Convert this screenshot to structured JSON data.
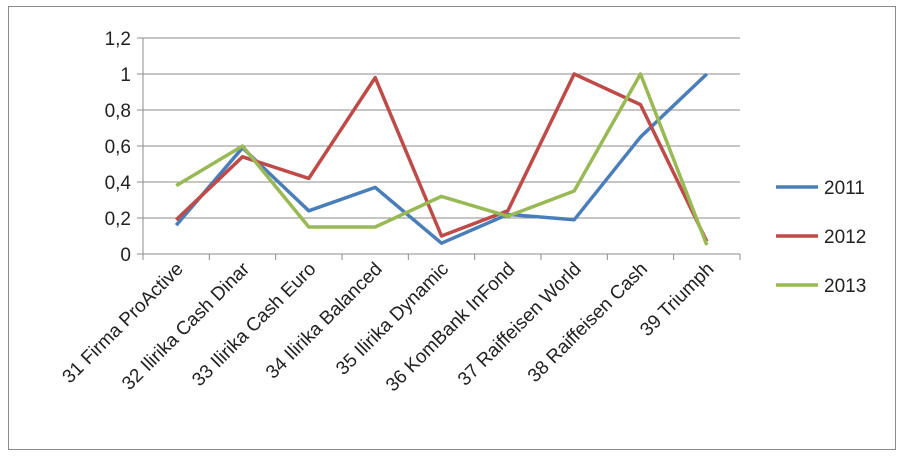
{
  "chart_data": {
    "type": "line",
    "title": "",
    "xlabel": "",
    "ylabel": "",
    "categories": [
      "31 Firma ProActive",
      "32 Ilirika Cash Dinar",
      "33 Ilirika Cash Euro",
      "34 Ilirika Balanced",
      "35 Ilirika Dynamic",
      "36 KomBank InFond",
      "37 Raiffeisen World",
      "38 Raiffeisen Cash",
      "39 Triumph"
    ],
    "ylim": [
      0,
      1.2
    ],
    "yticks": [
      "0",
      "0,2",
      "0,4",
      "0,6",
      "0,8",
      "1",
      "1,2"
    ],
    "grid": true,
    "legend_position": "right",
    "series": [
      {
        "name": "2011",
        "color": "#4a7ebb",
        "values": [
          0.16,
          0.59,
          0.24,
          0.37,
          0.06,
          0.22,
          0.19,
          0.65,
          1.0
        ]
      },
      {
        "name": "2012",
        "color": "#be4b48",
        "values": [
          0.19,
          0.54,
          0.42,
          0.98,
          0.1,
          0.24,
          1.0,
          0.83,
          0.07
        ]
      },
      {
        "name": "2013",
        "color": "#98b954",
        "values": [
          0.38,
          0.6,
          0.15,
          0.15,
          0.32,
          0.21,
          0.35,
          1.0,
          0.05
        ]
      }
    ]
  }
}
